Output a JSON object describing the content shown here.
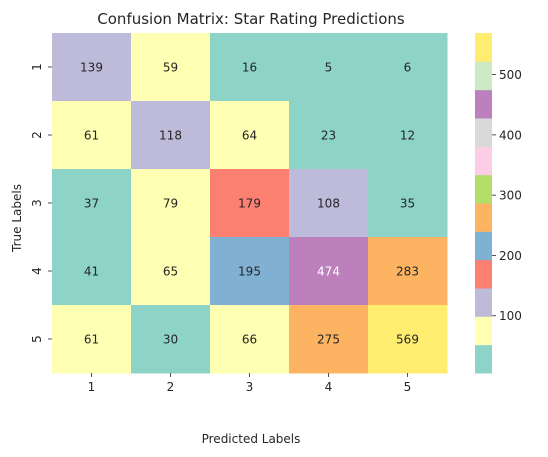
{
  "chart_data": {
    "type": "heatmap",
    "title": "Confusion Matrix: Star Rating Predictions",
    "xlabel": "Predicted Labels",
    "ylabel": "True Labels",
    "x_categories": [
      "1",
      "2",
      "3",
      "4",
      "5"
    ],
    "y_categories": [
      "1",
      "2",
      "3",
      "4",
      "5"
    ],
    "values": [
      [
        139,
        59,
        16,
        5,
        6
      ],
      [
        61,
        118,
        64,
        23,
        12
      ],
      [
        37,
        79,
        179,
        108,
        35
      ],
      [
        41,
        65,
        195,
        474,
        283
      ],
      [
        61,
        30,
        66,
        275,
        569
      ]
    ],
    "value_range": [
      5,
      569
    ],
    "colormap": [
      "#8dd3c7",
      "#ffffb3",
      "#bebada",
      "#fb8072",
      "#80b1d3",
      "#fdb462",
      "#b3de69",
      "#fccde5",
      "#d9d9d9",
      "#bc80bd",
      "#ccebc5",
      "#ffed6f"
    ],
    "colorbar_ticks": [
      100,
      200,
      300,
      400,
      500
    ],
    "text_color_dark": "#262626",
    "text_color_light": "#ffffff"
  }
}
